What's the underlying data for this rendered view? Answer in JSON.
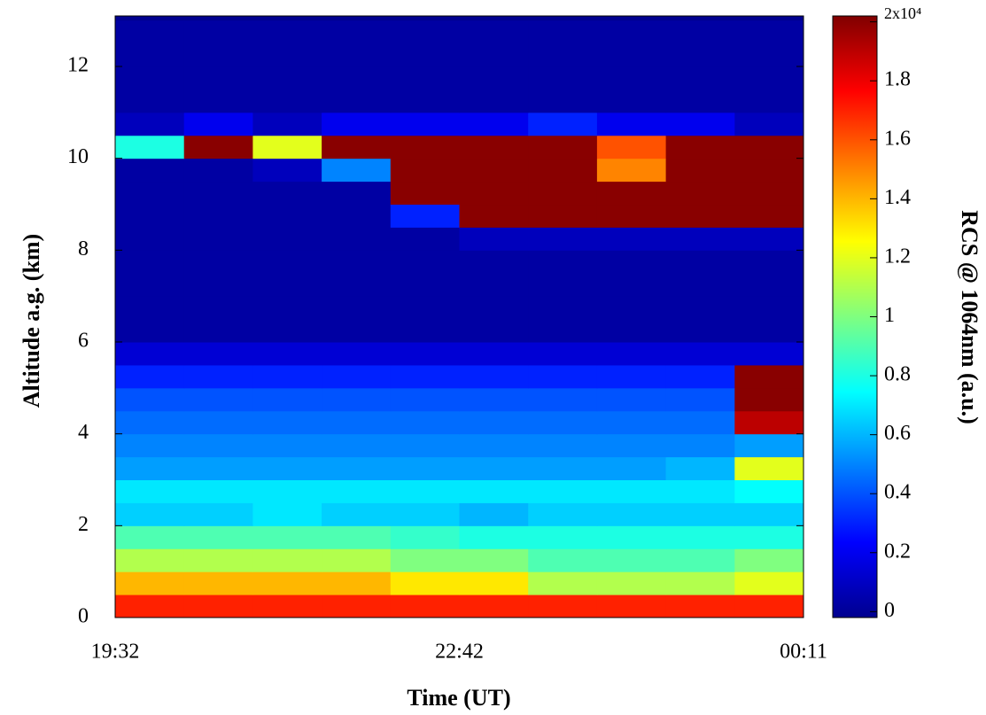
{
  "chart_data": {
    "type": "heatmap",
    "x_label": "Time (UT)",
    "y_label": "Altitude a.g. (km)",
    "colorbar_label": "RCS @ 1064nm (a.u.)",
    "x_tick_labels": [
      "19:32",
      "22:42",
      "00:11"
    ],
    "ylim": [
      0,
      13.1
    ],
    "yticks": [
      0,
      2,
      4,
      6,
      8,
      10,
      12
    ],
    "y": [
      0.25,
      0.75,
      1.25,
      1.75,
      2.25,
      2.75,
      3.25,
      3.75,
      4.25,
      4.75,
      5.25,
      5.75,
      6.25,
      6.75,
      7.25,
      7.75,
      8.25,
      8.75,
      9.25,
      9.75,
      10.25,
      10.75,
      11.25,
      11.75,
      12.25,
      12.75
    ],
    "z": [
      [
        1.7,
        1.7,
        1.7,
        1.7,
        1.7,
        1.7,
        1.7,
        1.7,
        1.7,
        1.7
      ],
      [
        1.4,
        1.4,
        1.4,
        1.4,
        1.3,
        1.3,
        1.1,
        1.1,
        1.1,
        1.2
      ],
      [
        1.1,
        1.1,
        1.1,
        1.1,
        1.0,
        1.0,
        0.9,
        0.9,
        0.9,
        1.0
      ],
      [
        0.9,
        0.9,
        0.9,
        0.9,
        0.85,
        0.8,
        0.8,
        0.8,
        0.8,
        0.8
      ],
      [
        0.65,
        0.65,
        0.7,
        0.65,
        0.65,
        0.6,
        0.65,
        0.65,
        0.65,
        0.65
      ],
      [
        0.7,
        0.7,
        0.7,
        0.7,
        0.7,
        0.7,
        0.7,
        0.7,
        0.7,
        0.75
      ],
      [
        0.55,
        0.55,
        0.55,
        0.55,
        0.55,
        0.55,
        0.55,
        0.55,
        0.6,
        1.2
      ],
      [
        0.5,
        0.5,
        0.5,
        0.5,
        0.5,
        0.5,
        0.5,
        0.5,
        0.5,
        0.55
      ],
      [
        0.45,
        0.45,
        0.45,
        0.45,
        0.45,
        0.45,
        0.45,
        0.45,
        0.45,
        1.9
      ],
      [
        0.4,
        0.4,
        0.4,
        0.4,
        0.4,
        0.4,
        0.4,
        0.4,
        0.4,
        2
      ],
      [
        0.3,
        0.3,
        0.3,
        0.3,
        0.3,
        0.3,
        0.3,
        0.3,
        0.3,
        2
      ],
      [
        0.15,
        0.15,
        0.15,
        0.15,
        0.15,
        0.15,
        0.15,
        0.15,
        0.15,
        0.15
      ],
      [
        0.05,
        0.05,
        0.05,
        0.05,
        0.05,
        0.05,
        0.05,
        0.05,
        0.05,
        0.05
      ],
      [
        0.05,
        0.05,
        0.05,
        0.05,
        0.05,
        0.05,
        0.05,
        0.05,
        0.05,
        0.05
      ],
      [
        0.05,
        0.05,
        0.05,
        0.05,
        0.05,
        0.05,
        0.05,
        0.05,
        0.05,
        0.05
      ],
      [
        0.05,
        0.05,
        0.05,
        0.05,
        0.05,
        0.05,
        0.05,
        0.05,
        0.05,
        0.05
      ],
      [
        0.05,
        0.05,
        0.05,
        0.05,
        0.05,
        0.1,
        0.1,
        0.1,
        0.1,
        0.1
      ],
      [
        0.05,
        0.05,
        0.05,
        0.05,
        0.3,
        2,
        2,
        2,
        2,
        2
      ],
      [
        0.05,
        0.05,
        0.05,
        0.05,
        2,
        2,
        2,
        2,
        2,
        2
      ],
      [
        0.05,
        0.05,
        0.1,
        0.5,
        2,
        2,
        2,
        1.5,
        2,
        2
      ],
      [
        0.8,
        2,
        1.2,
        2,
        2,
        2,
        2,
        1.6,
        2,
        2
      ],
      [
        0.1,
        0.2,
        0.1,
        0.2,
        0.2,
        0.2,
        0.3,
        0.2,
        0.2,
        0.1
      ],
      [
        0.05,
        0.05,
        0.05,
        0.05,
        0.05,
        0.05,
        0.05,
        0.05,
        0.05,
        0.05
      ],
      [
        0.05,
        0.05,
        0.05,
        0.05,
        0.05,
        0.05,
        0.05,
        0.05,
        0.05,
        0.05
      ],
      [
        0.05,
        0.05,
        0.05,
        0.05,
        0.05,
        0.05,
        0.05,
        0.05,
        0.05,
        0.05
      ],
      [
        0.05,
        0.05,
        0.05,
        0.05,
        0.05,
        0.05,
        0.05,
        0.05,
        0.05,
        0.05
      ]
    ],
    "clim": [
      -0.02,
      2.02
    ],
    "cticks": [
      0,
      0.2,
      0.4,
      0.6,
      0.8,
      1,
      1.2,
      1.4,
      1.6,
      1.8,
      {
        "value": 2,
        "label": "2x10⁴"
      }
    ],
    "colormap": "jet"
  }
}
